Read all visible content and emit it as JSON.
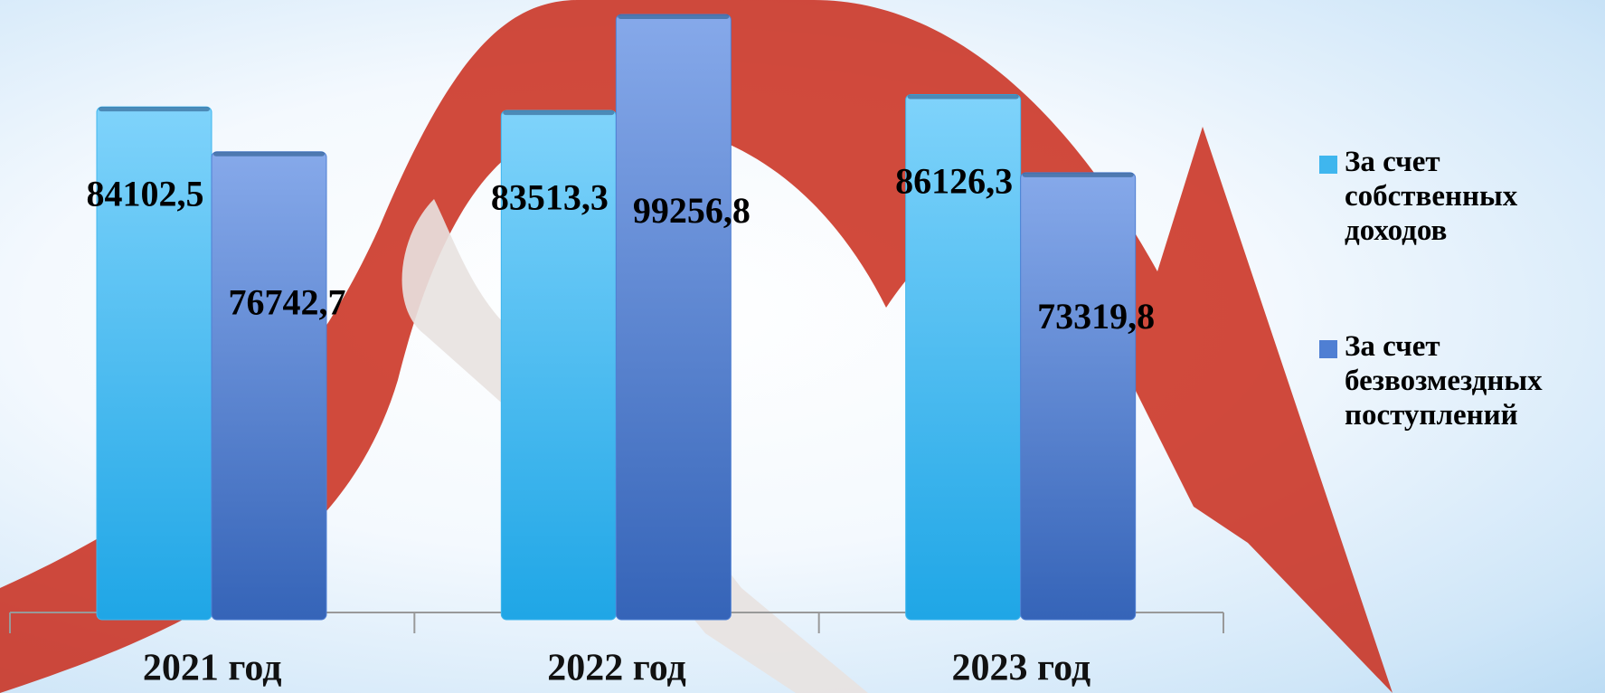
{
  "chart_data": {
    "type": "bar",
    "categories": [
      "2021 год",
      "2022 год",
      "2023 год"
    ],
    "series": [
      {
        "name": "За счет собственных доходов",
        "color": "#3fb6ee",
        "values": [
          84102.5,
          83513.3,
          86126.3
        ],
        "value_labels": [
          "84102,5",
          "83513,3",
          "86126,3"
        ]
      },
      {
        "name": "За счет безвозмездных поступлений",
        "color": "#4f7fd3",
        "values": [
          76742.7,
          99256.8,
          73319.8
        ],
        "value_labels": [
          "76742,7",
          "99256,8",
          "73319,8"
        ]
      }
    ],
    "legend": "right"
  }
}
